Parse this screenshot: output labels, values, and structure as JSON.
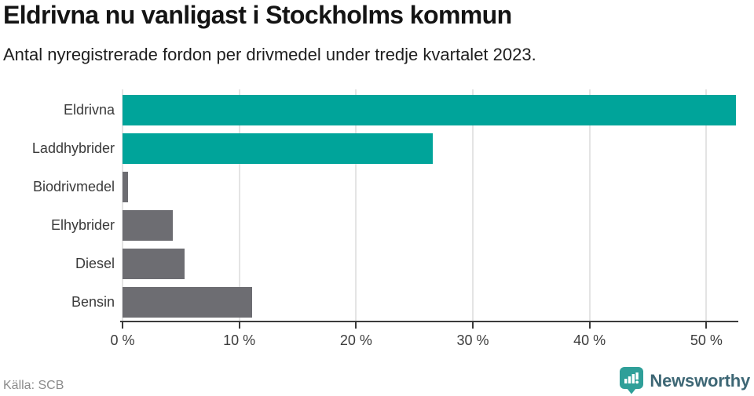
{
  "header": {
    "title": "Eldrivna nu vanligast i Stockholms kommun",
    "subtitle": "Antal nyregistrerade fordon per drivmedel under tredje kvartalet 2023."
  },
  "chart_data": {
    "type": "bar",
    "orientation": "horizontal",
    "title": "Eldrivna nu vanligast i Stockholms kommun",
    "subtitle": "Antal nyregistrerade fordon per drivmedel under tredje kvartalet 2023.",
    "categories": [
      "Eldrivna",
      "Laddhybrider",
      "Biodrivmedel",
      "Elhybrider",
      "Diesel",
      "Bensin"
    ],
    "values": [
      52.5,
      26.6,
      0.5,
      4.3,
      5.3,
      11.1
    ],
    "unit": "%",
    "bar_colors": [
      "#00a49a",
      "#00a49a",
      "#6d6d72",
      "#6d6d72",
      "#6d6d72",
      "#6d6d72"
    ],
    "xlabel": "",
    "ylabel": "",
    "xlim": [
      0,
      52.6
    ],
    "x_ticks": [
      0,
      10,
      20,
      30,
      40,
      50
    ],
    "x_tick_labels": [
      "0 %",
      "10 %",
      "20 %",
      "30 %",
      "40 %",
      "50 %"
    ],
    "grid": "vertical-only",
    "legend": "none"
  },
  "colors": {
    "accent_teal": "#00a49a",
    "neutral_gray": "#6d6d72",
    "axis": "#3b3b3b",
    "gridline": "#e4e4e4",
    "logo_pin": "#2f9f99",
    "logo_text": "#3e6775"
  },
  "footer": {
    "source": "Källa: SCB",
    "brand": "Newsworthy"
  }
}
